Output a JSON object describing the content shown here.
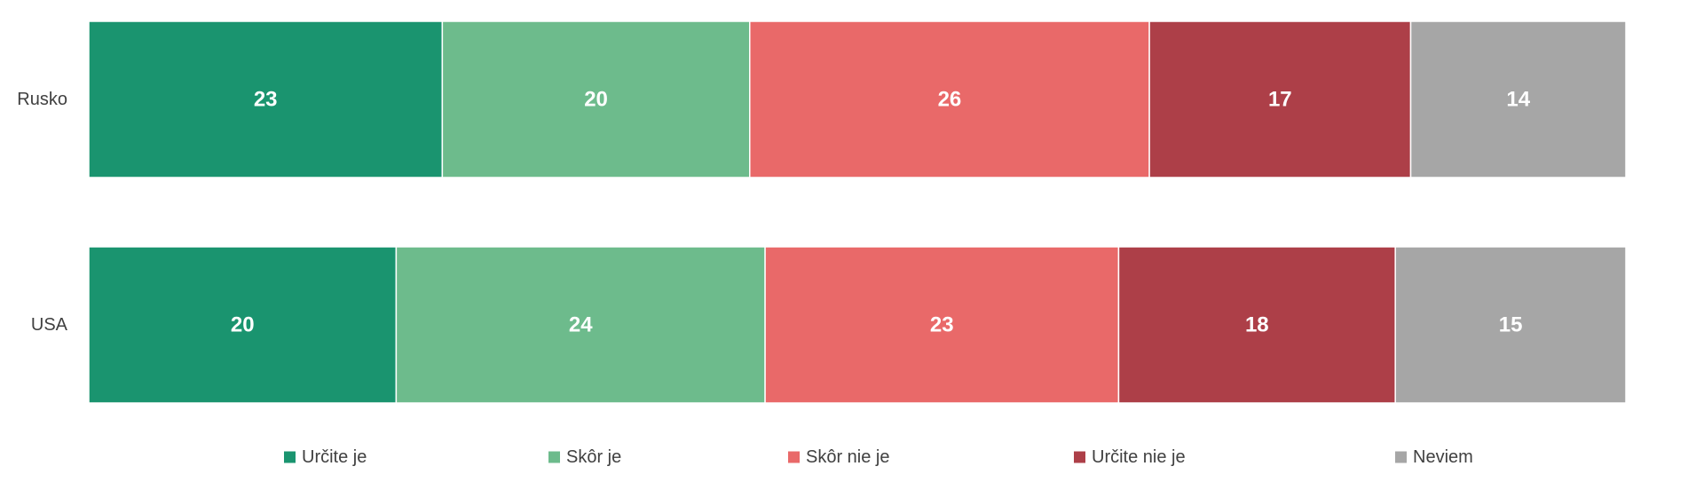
{
  "chart_data": {
    "type": "bar",
    "orientation": "horizontal",
    "stacked": true,
    "percent_stacked": true,
    "categories": [
      "Rusko",
      "USA"
    ],
    "series": [
      {
        "name": "Určite je",
        "color": "#1a946f",
        "values": [
          23,
          20
        ]
      },
      {
        "name": "Skôr je",
        "color": "#6dbb8c",
        "values": [
          20,
          24
        ]
      },
      {
        "name": "Skôr nie je",
        "color": "#e96969",
        "values": [
          26,
          23
        ]
      },
      {
        "name": "Určite nie je",
        "color": "#ad3f48",
        "values": [
          17,
          18
        ]
      },
      {
        "name": "Neviem",
        "color": "#a6a6a6",
        "values": [
          14,
          15
        ]
      }
    ],
    "title": "",
    "xlabel": "",
    "ylabel": "",
    "xlim": [
      0,
      100
    ],
    "grid": false,
    "data_labels": true,
    "legend": "bottom"
  }
}
